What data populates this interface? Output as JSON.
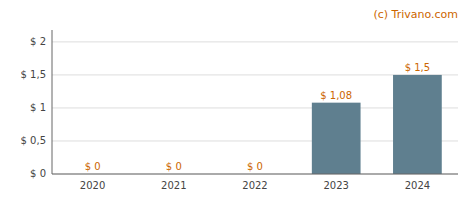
{
  "chart_data": {
    "type": "bar",
    "annotations": [
      "(c) Trivano.com"
    ],
    "categories": [
      "2020",
      "2021",
      "2022",
      "2023",
      "2024"
    ],
    "values": [
      0,
      0,
      0,
      1.08,
      1.5
    ],
    "value_labels": [
      "$ 0",
      "$ 0",
      "$ 0",
      "$ 1,08",
      "$ 1,5"
    ],
    "data_labels": true,
    "color": "#5f7f8f",
    "ylim": [
      0,
      2.18
    ],
    "yticks": [
      {
        "value": 0,
        "label": "$ 0"
      },
      {
        "value": 0.5,
        "label": "$ 0,5"
      },
      {
        "value": 1.0,
        "label": "$ 1"
      },
      {
        "value": 1.5,
        "label": "$ 1,5"
      },
      {
        "value": 2.0,
        "label": "$ 2"
      }
    ],
    "grid": true
  }
}
